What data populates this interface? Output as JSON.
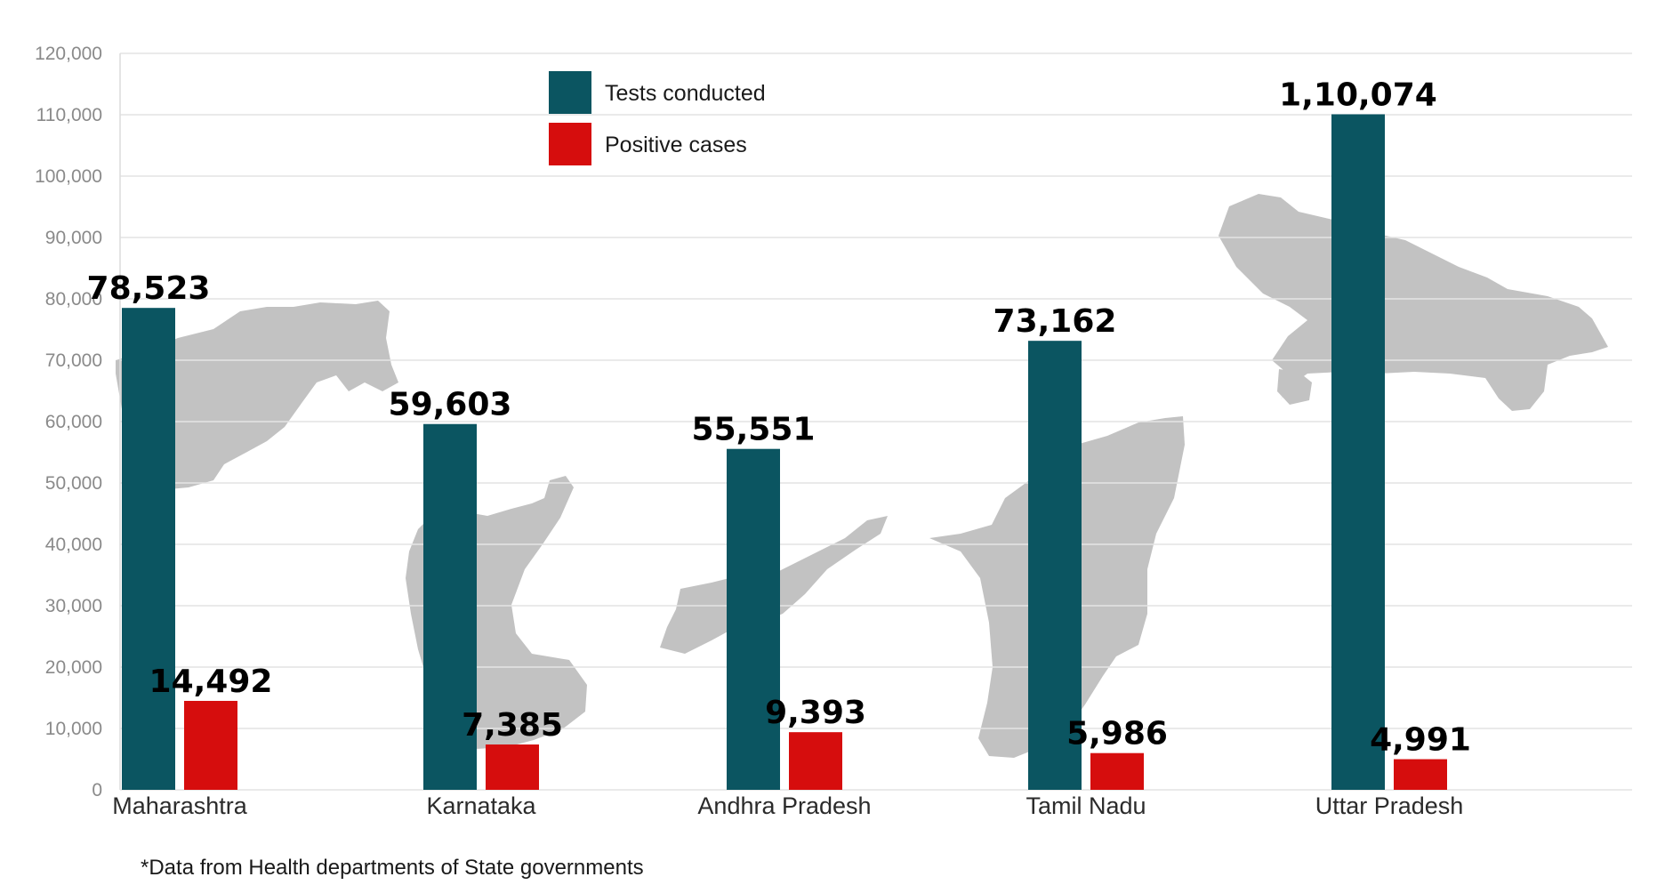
{
  "chart_data": {
    "type": "bar",
    "categories": [
      "Maharashtra",
      "Karnataka",
      "Andhra Pradesh",
      "Tamil Nadu",
      "Uttar Pradesh"
    ],
    "series": [
      {
        "name": "Tests conducted",
        "values": [
          78523,
          59603,
          55551,
          73162,
          110074
        ],
        "labels": [
          "78,523",
          "59,603",
          "55,551",
          "73,162",
          "1,10,074"
        ]
      },
      {
        "name": "Positive cases",
        "values": [
          14492,
          7385,
          9393,
          5986,
          4991
        ],
        "labels": [
          "14,492",
          "7,385",
          "9,393",
          "5,986",
          "4,991"
        ]
      }
    ],
    "ylim": [
      0,
      120000
    ],
    "yticks": [
      0,
      10000,
      20000,
      30000,
      40000,
      50000,
      60000,
      70000,
      80000,
      90000,
      100000,
      110000,
      120000
    ],
    "ytick_labels": [
      "0",
      "10,000",
      "20,000",
      "30,000",
      "40,000",
      "50,000",
      "60,000",
      "70,000",
      "80,000",
      "90,000",
      "100,000",
      "110,000",
      "120,000"
    ],
    "grid": true,
    "legend_position": "top-center",
    "colors": {
      "Tests conducted": "#0b5561",
      "Positive cases": "#d60d0d"
    },
    "background_icons": [
      "maharashtra-map-icon",
      "karnataka-map-icon",
      "andhra-pradesh-map-icon",
      "tamil-nadu-map-icon",
      "uttar-pradesh-map-icon"
    ]
  },
  "footnote": "*Data from Health departments of State governments"
}
